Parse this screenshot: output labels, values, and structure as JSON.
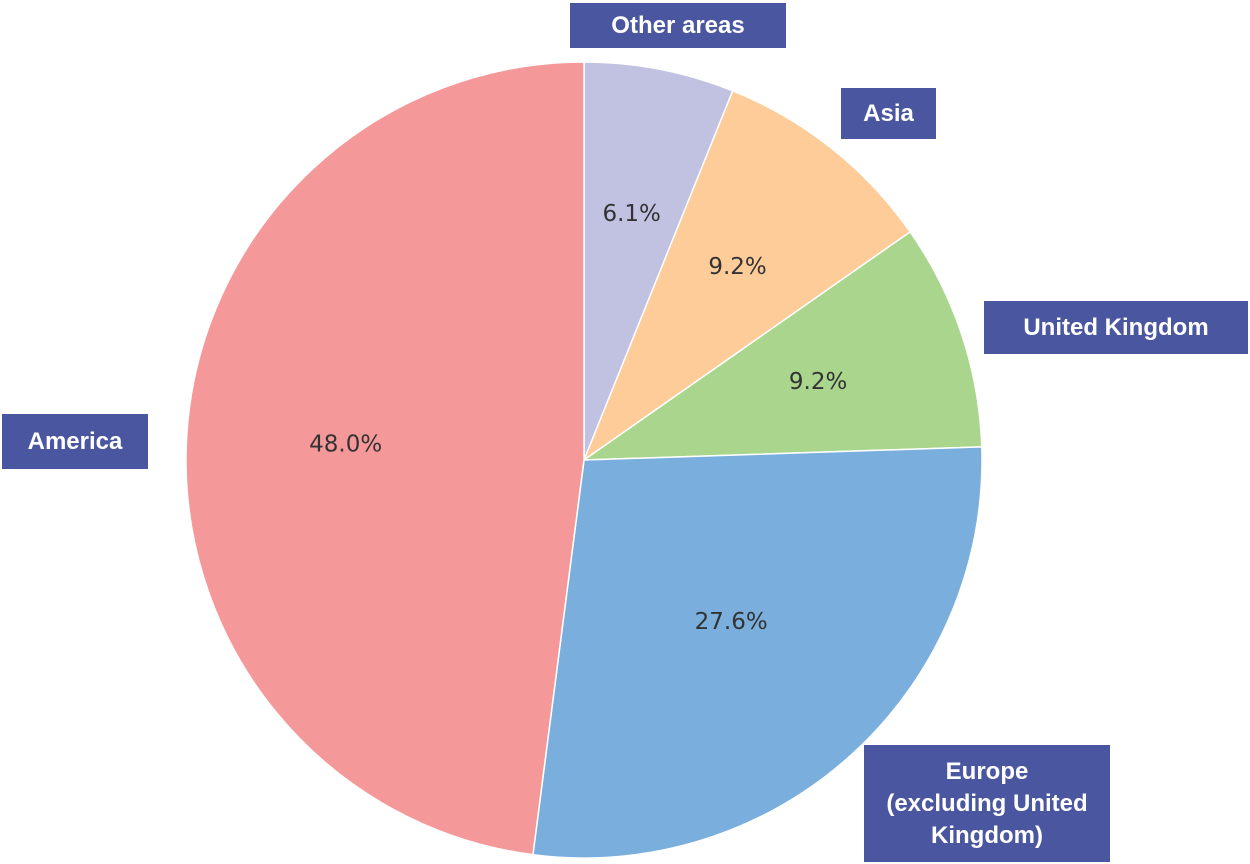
{
  "chart_data": {
    "type": "pie",
    "start_angle_deg": 90,
    "direction": "clockwise",
    "slices": [
      {
        "label": "Other areas",
        "value": 6.1,
        "pct_label": "6.1%",
        "color": "#c1c1e2"
      },
      {
        "label": "Asia",
        "value": 9.2,
        "pct_label": "9.2%",
        "color": "#fdcc99"
      },
      {
        "label": "United Kingdom",
        "value": 9.2,
        "pct_label": "9.2%",
        "color": "#aad58c"
      },
      {
        "label": "Europe\n(excluding United\nKingdom)",
        "value": 27.6,
        "pct_label": "27.6%",
        "color": "#7aaedc"
      },
      {
        "label": "America",
        "value": 48.0,
        "pct_label": "48.0%",
        "color": "#f59899"
      }
    ],
    "legend_color": "#4a56a0"
  }
}
